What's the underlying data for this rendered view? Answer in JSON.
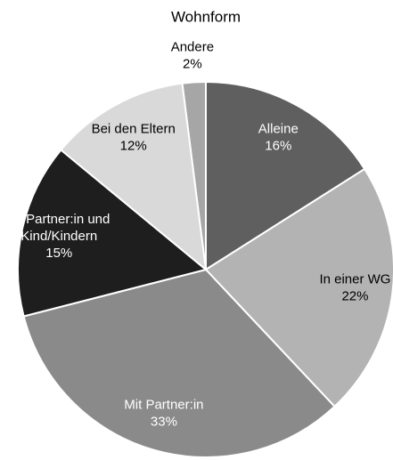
{
  "chart_data": {
    "type": "pie",
    "title": "Wohnform",
    "categories": [
      "Alleine",
      "In einer WG",
      "Mit Partner:in",
      "Mit Partner:in und Kind/Kindern",
      "Bei den Eltern",
      "Andere"
    ],
    "values": [
      16,
      22,
      33,
      15,
      12,
      2
    ],
    "value_labels": [
      "16%",
      "22%",
      "33%",
      "15%",
      "12%",
      "2%"
    ],
    "colors": [
      "#5f5f5f",
      "#b3b3b3",
      "#8a8a8a",
      "#1e1e1e",
      "#d9d9d9",
      "#a6a6a6"
    ]
  }
}
